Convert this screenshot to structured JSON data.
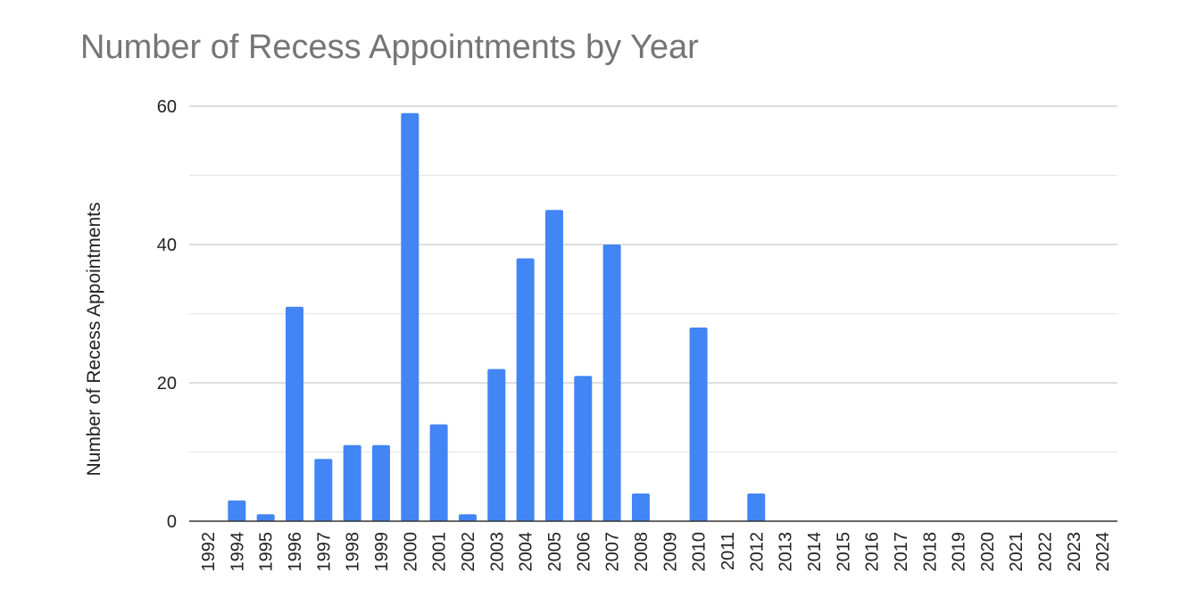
{
  "chart_data": {
    "type": "bar",
    "title": "Number of Recess Appointments by Year",
    "xlabel": "",
    "ylabel": "Number of Recess Appointments",
    "ylim": [
      0,
      60
    ],
    "yticks": [
      0,
      20,
      40,
      60
    ],
    "grid": true,
    "legend": "none",
    "bar_color": "#4285f4",
    "categories": [
      "1992",
      "1994",
      "1995",
      "1996",
      "1997",
      "1998",
      "1999",
      "2000",
      "2001",
      "2002",
      "2003",
      "2004",
      "2005",
      "2006",
      "2007",
      "2008",
      "2009",
      "2010",
      "2011",
      "2012",
      "2013",
      "2014",
      "2015",
      "2016",
      "2017",
      "2018",
      "2019",
      "2020",
      "2021",
      "2022",
      "2023",
      "2024"
    ],
    "values": [
      0,
      3,
      1,
      31,
      9,
      11,
      11,
      59,
      14,
      1,
      22,
      38,
      45,
      21,
      40,
      4,
      0,
      28,
      0,
      4,
      0,
      0,
      0,
      0,
      0,
      0,
      0,
      0,
      0,
      0,
      0,
      0
    ]
  }
}
